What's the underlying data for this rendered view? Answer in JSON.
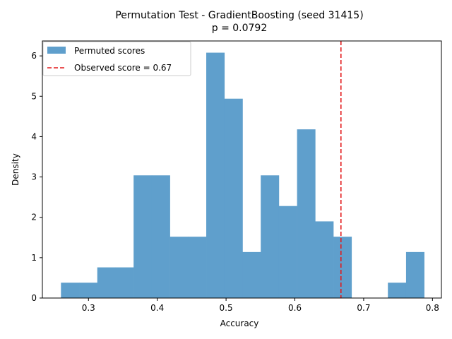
{
  "chart_data": {
    "type": "bar",
    "title_line1": "Permutation Test - GradientBoosting (seed 31415)",
    "title_line2": "p = 0.0792",
    "xlabel": "Accuracy",
    "ylabel": "Density",
    "xlim": [
      0.233,
      0.813
    ],
    "ylim": [
      0,
      6.37
    ],
    "xticks": [
      0.3,
      0.4,
      0.5,
      0.6,
      0.7,
      0.8
    ],
    "yticks": [
      0,
      1,
      2,
      3,
      4,
      5,
      6
    ],
    "bin_edges": [
      0.26,
      0.2864,
      0.3128,
      0.3392,
      0.3656,
      0.392,
      0.4184,
      0.4448,
      0.4712,
      0.4976,
      0.524,
      0.5504,
      0.5768,
      0.6032,
      0.6296,
      0.656,
      0.6824,
      0.7088,
      0.7352,
      0.7616,
      0.788
    ],
    "densities": [
      0.38,
      0.38,
      0.76,
      0.76,
      3.04,
      3.04,
      1.52,
      1.52,
      6.08,
      4.94,
      1.14,
      3.04,
      2.28,
      4.18,
      1.9,
      1.52,
      0,
      0,
      0.38,
      1.14
    ],
    "observed_score": 0.667,
    "series": [
      {
        "name": "Permuted scores",
        "color": "#5f9fcc"
      },
      {
        "name": "Observed score = 0.67",
        "color": "#e31a1c"
      }
    ],
    "legend_position": "top-left",
    "grid": false
  }
}
